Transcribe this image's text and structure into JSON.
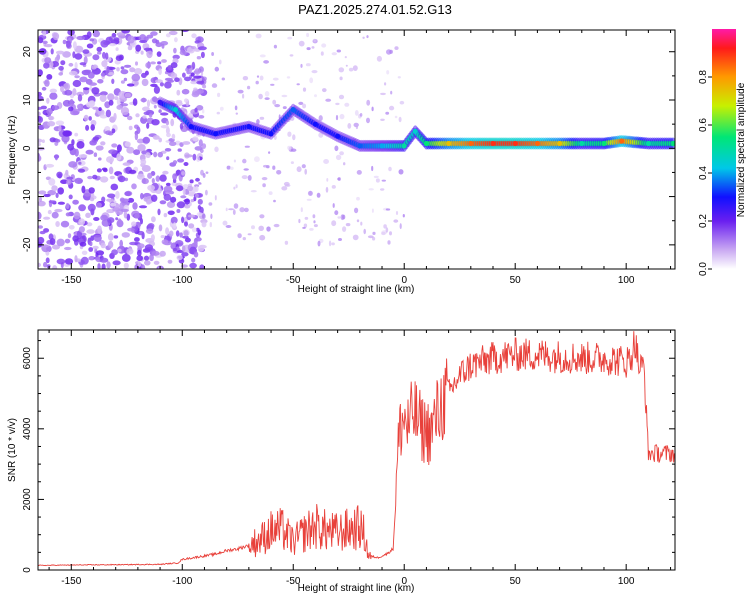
{
  "title": "PAZ1.2025.274.01.52.G13",
  "chart_data": [
    {
      "type": "heatmap",
      "xlabel": "Height of straight line (km)",
      "ylabel": "Frequency (Hz)",
      "xlim": [
        -165,
        122
      ],
      "ylim": [
        -25,
        24.5
      ],
      "xticks": [
        -150,
        -100,
        -50,
        0,
        50,
        100
      ],
      "yticks": [
        -20,
        -10,
        0,
        10,
        20
      ],
      "colorbar": {
        "label": "Normalized spectral amplitude",
        "range": [
          0,
          1
        ],
        "ticks": [
          0.0,
          0.2,
          0.4,
          0.6,
          0.8
        ]
      },
      "ridge": [
        {
          "x": -110,
          "f": 9.5,
          "a": 0.25
        },
        {
          "x": -103,
          "f": 8,
          "a": 0.45
        },
        {
          "x": -96,
          "f": 4.5,
          "a": 0.3
        },
        {
          "x": -85,
          "f": 3,
          "a": 0.3
        },
        {
          "x": -70,
          "f": 4.5,
          "a": 0.3
        },
        {
          "x": -60,
          "f": 3,
          "a": 0.3
        },
        {
          "x": -50,
          "f": 8,
          "a": 0.35
        },
        {
          "x": -40,
          "f": 5,
          "a": 0.3
        },
        {
          "x": -30,
          "f": 2.5,
          "a": 0.3
        },
        {
          "x": -20,
          "f": 0.5,
          "a": 0.35
        },
        {
          "x": -10,
          "f": 0.5,
          "a": 0.4
        },
        {
          "x": 0,
          "f": 0.5,
          "a": 0.5
        },
        {
          "x": 5,
          "f": 3.5,
          "a": 0.45
        },
        {
          "x": 10,
          "f": 1.0,
          "a": 0.55
        },
        {
          "x": 20,
          "f": 1.0,
          "a": 0.75
        },
        {
          "x": 30,
          "f": 1.0,
          "a": 0.85
        },
        {
          "x": 40,
          "f": 1.0,
          "a": 0.9
        },
        {
          "x": 50,
          "f": 1.0,
          "a": 0.9
        },
        {
          "x": 60,
          "f": 1.0,
          "a": 0.85
        },
        {
          "x": 70,
          "f": 1.0,
          "a": 0.75
        },
        {
          "x": 80,
          "f": 1.0,
          "a": 0.5
        },
        {
          "x": 90,
          "f": 1.0,
          "a": 0.55
        },
        {
          "x": 98,
          "f": 1.5,
          "a": 0.85
        },
        {
          "x": 110,
          "f": 1.0,
          "a": 0.5
        },
        {
          "x": 122,
          "f": 1.0,
          "a": 0.55
        }
      ]
    },
    {
      "type": "line",
      "xlabel": "Height of straight line (km)",
      "ylabel": "SNR (10 * v/v)",
      "xlim": [
        -165,
        122
      ],
      "ylim": [
        0,
        6800
      ],
      "xticks": [
        -150,
        -100,
        -50,
        0,
        50,
        100
      ],
      "yticks": [
        0,
        2000,
        4000,
        6000
      ],
      "series": [
        {
          "name": "SNR",
          "color": "#e8403a",
          "x": [
            -165,
            -150,
            -130,
            -110,
            -102,
            -100,
            -95,
            -90,
            -85,
            -80,
            -75,
            -70,
            -65,
            -60,
            -55,
            -50,
            -45,
            -40,
            -35,
            -30,
            -25,
            -20,
            -18,
            -16,
            -12,
            -8,
            -5,
            -3,
            -2,
            0,
            2,
            4,
            8,
            12,
            16,
            20,
            25,
            30,
            35,
            40,
            50,
            60,
            70,
            80,
            90,
            100,
            102,
            104,
            106,
            108,
            110,
            122
          ],
          "values": [
            130,
            140,
            150,
            160,
            200,
            300,
            350,
            400,
            450,
            550,
            600,
            700,
            850,
            1100,
            1150,
            800,
            1050,
            1250,
            1100,
            1050,
            1150,
            1200,
            1000,
            400,
            350,
            450,
            600,
            3200,
            4000,
            4300,
            4000,
            4500,
            4000,
            3900,
            4600,
            5000,
            5500,
            5800,
            5900,
            6000,
            6100,
            6100,
            6050,
            6000,
            6000,
            5900,
            6000,
            6500,
            5700,
            5800,
            3300,
            3300
          ]
        }
      ]
    }
  ]
}
